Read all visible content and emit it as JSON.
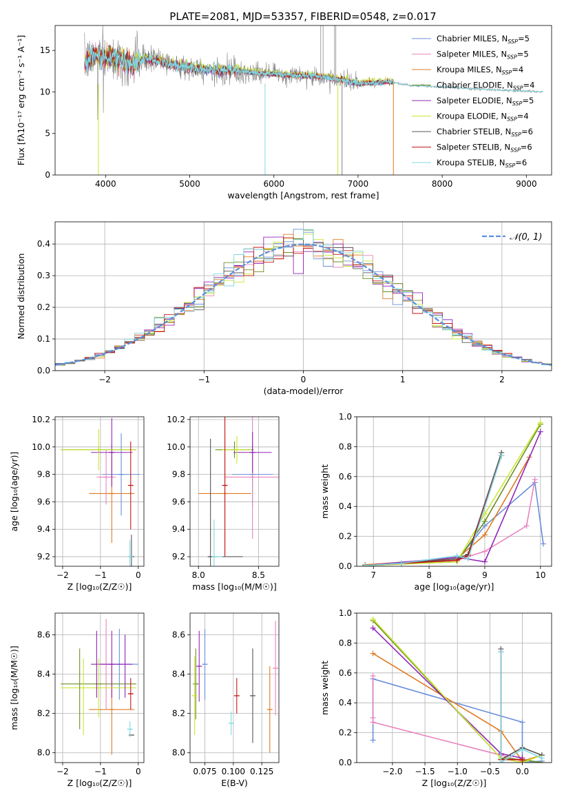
{
  "figure": {
    "title": "PLATE=2081, MJD=53357, FIBERID=0548, z=0.017"
  },
  "colors": {
    "chabrier_miles": "#6a8edb",
    "salpeter_miles": "#e883bd",
    "kroupa_miles": "#e07b1f",
    "chabrier_elodie": "#6b8e23",
    "salpeter_elodie": "#9124b8",
    "kroupa_elodie": "#c8e62e",
    "chabrier_stelib": "#555555",
    "salpeter_stelib": "#c41414",
    "kroupa_stelib": "#7fd8e0",
    "gaussian": "#5b8edb",
    "spectrum_grey": "#808080"
  },
  "chart_data": [
    {
      "id": "spectrum",
      "type": "line",
      "xlabel": "wavelength [Angstrom, rest frame]",
      "ylabel": "Flux [fλ10⁻¹⁷ erg cm⁻² s⁻¹ A⁻¹]",
      "xlim": [
        3400,
        9300
      ],
      "ylim": [
        0,
        18
      ],
      "xticks": [
        4000,
        5000,
        6000,
        7000,
        8000,
        9000
      ],
      "yticks": [
        0,
        5,
        10,
        15
      ],
      "grid": false,
      "legend_position": "top-right",
      "legend": [
        {
          "label": "Chabrier MILES, N",
          "sub": "SSP",
          "tail": "=5",
          "color_key": "chabrier_miles"
        },
        {
          "label": "Salpeter MILES, N",
          "sub": "SSP",
          "tail": "=5",
          "color_key": "salpeter_miles"
        },
        {
          "label": "Kroupa MILES, N",
          "sub": "SSP",
          "tail": "=4",
          "color_key": "kroupa_miles"
        },
        {
          "label": "Chabrier ELODIE, N",
          "sub": "SSP",
          "tail": "=4",
          "color_key": "chabrier_elodie"
        },
        {
          "label": "Salpeter ELODIE, N",
          "sub": "SSP",
          "tail": "=5",
          "color_key": "salpeter_elodie"
        },
        {
          "label": "Kroupa ELODIE, N",
          "sub": "SSP",
          "tail": "=4",
          "color_key": "kroupa_elodie"
        },
        {
          "label": "Chabrier STELIB, N",
          "sub": "SSP",
          "tail": "=6",
          "color_key": "chabrier_stelib"
        },
        {
          "label": "Salpeter STELIB, N",
          "sub": "SSP",
          "tail": "=6",
          "color_key": "salpeter_stelib"
        },
        {
          "label": "Kroupa STELIB, N",
          "sub": "SSP",
          "tail": "=6",
          "color_key": "kroupa_stelib"
        }
      ],
      "continuum_points": [
        [
          3750,
          13.5
        ],
        [
          3900,
          14.5
        ],
        [
          4000,
          14.0
        ],
        [
          4100,
          14.2
        ],
        [
          4300,
          13.3
        ],
        [
          4500,
          14.0
        ],
        [
          4700,
          13.5
        ],
        [
          5000,
          12.9
        ],
        [
          5300,
          12.6
        ],
        [
          5600,
          12.5
        ],
        [
          5900,
          12.2
        ],
        [
          6200,
          12.0
        ],
        [
          6500,
          11.9
        ],
        [
          6800,
          11.5
        ],
        [
          7000,
          11.0
        ],
        [
          7400,
          11.2
        ],
        [
          7600,
          10.8
        ],
        [
          8000,
          10.6
        ],
        [
          8500,
          10.3
        ],
        [
          9000,
          10.1
        ],
        [
          9200,
          10.0
        ]
      ],
      "model_end_wavelength": 7420,
      "data_end_wavelength": 7320,
      "spikes": [
        {
          "x": 3915,
          "color_key": "kroupa_elodie"
        },
        {
          "x": 5895,
          "color_key": "kroupa_stelib"
        },
        {
          "x": 6760,
          "color_key": "kroupa_elodie"
        },
        {
          "x": 6810,
          "color_key": "spectrum_grey"
        },
        {
          "x": 7420,
          "color_key": "kroupa_miles"
        }
      ]
    },
    {
      "id": "residuals",
      "type": "step",
      "xlabel": "(data-model)/error",
      "ylabel": "Normed distribution",
      "xlim": [
        -2.5,
        2.5
      ],
      "ylim": [
        0,
        0.47
      ],
      "xticks": [
        -2,
        -1,
        0,
        1,
        2
      ],
      "yticks": [
        0.0,
        0.1,
        0.2,
        0.3,
        0.4
      ],
      "grid": true,
      "legend_position": "top-right",
      "legend": [
        {
          "label": "𝒩(0, 1)",
          "color_key": "gaussian"
        }
      ],
      "bin_width": 0.1,
      "n_histograms": 9
    },
    {
      "id": "age_vs_Z",
      "type": "errorbar",
      "xlabel": "Z [log₁₀(Z/Z☉)]",
      "ylabel": "age  [log₁₀(age/yr)]",
      "xlim": [
        -2.2,
        0.15
      ],
      "ylim": [
        9.13,
        10.22
      ],
      "xticks": [
        -2,
        -1,
        0
      ],
      "yticks": [
        9.2,
        9.4,
        9.6,
        9.8,
        10.0,
        10.2
      ],
      "grid": true,
      "points": [
        {
          "x": -0.45,
          "xerr": 0.5,
          "y": 9.8,
          "yerr": 0.3,
          "color_key": "chabrier_miles"
        },
        {
          "x": -0.85,
          "xerr": 0.25,
          "y": 9.78,
          "yerr": 0.2,
          "color_key": "salpeter_miles"
        },
        {
          "x": -0.7,
          "xerr": 0.6,
          "y": 9.66,
          "yerr": 0.36,
          "color_key": "kroupa_miles"
        },
        {
          "x": -1.05,
          "xerr": 1.0,
          "y": 9.98,
          "yerr": 0.02,
          "color_key": "chabrier_elodie"
        },
        {
          "x": -0.7,
          "xerr": 0.55,
          "y": 9.96,
          "yerr": 0.25,
          "color_key": "salpeter_elodie"
        },
        {
          "x": -1.05,
          "xerr": 1.0,
          "y": 9.98,
          "yerr": 0.15,
          "color_key": "kroupa_elodie"
        },
        {
          "x": -0.18,
          "xerr": 0.05,
          "y": 9.2,
          "yerr": 0.16,
          "color_key": "chabrier_stelib"
        },
        {
          "x": -0.2,
          "xerr": 0.05,
          "y": 9.72,
          "yerr": 0.32,
          "color_key": "salpeter_stelib"
        },
        {
          "x": -0.22,
          "xerr": 0.04,
          "y": 9.2,
          "yerr": 0.12,
          "color_key": "kroupa_stelib"
        }
      ]
    },
    {
      "id": "age_vs_mass",
      "type": "errorbar",
      "xlabel": "mass [log₁₀(M/M☉)]",
      "ylabel": "",
      "xlim": [
        7.93,
        8.67
      ],
      "ylim": [
        9.13,
        10.22
      ],
      "xticks": [
        8.0,
        8.5
      ],
      "yticks": [
        9.2,
        9.4,
        9.6,
        9.8,
        10.0,
        10.2
      ],
      "grid": true,
      "points": [
        {
          "x": 8.45,
          "xerr": 0.17,
          "y": 9.8,
          "yerr": 0.23,
          "color_key": "chabrier_miles"
        },
        {
          "x": 8.45,
          "xerr": 0.23,
          "y": 9.78,
          "yerr": 0.45,
          "color_key": "salpeter_miles"
        },
        {
          "x": 8.22,
          "xerr": 0.22,
          "y": 9.66,
          "yerr": 0.44,
          "color_key": "kroupa_miles"
        },
        {
          "x": 8.3,
          "xerr": 0.16,
          "y": 9.98,
          "yerr": 0.06,
          "color_key": "chabrier_elodie"
        },
        {
          "x": 8.45,
          "xerr": 0.16,
          "y": 9.96,
          "yerr": 0.15,
          "color_key": "salpeter_elodie"
        },
        {
          "x": 8.32,
          "xerr": 0.12,
          "y": 9.98,
          "yerr": 0.1,
          "color_key": "kroupa_elodie"
        },
        {
          "x": 8.1,
          "xerr": 0.01,
          "y": 9.2,
          "yerr": 0.86,
          "color_key": "chabrier_stelib"
        },
        {
          "x": 8.22,
          "xerr": 0.02,
          "y": 9.72,
          "yerr": 0.52,
          "color_key": "salpeter_stelib"
        },
        {
          "x": 8.13,
          "xerr": 0.01,
          "y": 9.2,
          "yerr": 0.27,
          "color_key": "kroupa_stelib"
        }
      ],
      "hlines": [
        {
          "x1": 8.08,
          "x2": 8.37,
          "y": 9.2,
          "color_key": "chabrier_stelib"
        },
        {
          "x1": 8.11,
          "x2": 8.2,
          "y": 9.2,
          "color_key": "kroupa_stelib"
        }
      ]
    },
    {
      "id": "mass_weight_vs_age",
      "type": "line",
      "xlabel": "age  [log₁₀(age/yr)]",
      "ylabel": "mass weight",
      "xlim": [
        6.7,
        10.2
      ],
      "ylim": [
        0,
        1.0
      ],
      "xticks": [
        7,
        8,
        9,
        10
      ],
      "yticks": [
        0.0,
        0.2,
        0.4,
        0.6,
        0.8,
        1.0
      ],
      "grid": true,
      "series": [
        {
          "color_key": "chabrier_miles",
          "x": [
            6.85,
            8.5,
            9.0,
            9.9,
            10.05
          ],
          "y": [
            0.005,
            0.04,
            0.27,
            0.56,
            0.15
          ]
        },
        {
          "color_key": "salpeter_miles",
          "x": [
            6.85,
            8.5,
            9.0,
            9.75,
            9.9
          ],
          "y": [
            0.005,
            0.04,
            0.1,
            0.27,
            0.58
          ]
        },
        {
          "color_key": "kroupa_miles",
          "x": [
            6.85,
            8.5,
            9.0,
            9.8
          ],
          "y": [
            0.01,
            0.05,
            0.21,
            0.73
          ]
        },
        {
          "color_key": "chabrier_elodie",
          "x": [
            6.85,
            8.5,
            9.0,
            10.0
          ],
          "y": [
            0.005,
            0.03,
            0.3,
            0.95
          ]
        },
        {
          "color_key": "salpeter_elodie",
          "x": [
            6.85,
            8.5,
            9.0,
            10.0
          ],
          "y": [
            0.005,
            0.06,
            0.03,
            0.9
          ]
        },
        {
          "color_key": "kroupa_elodie",
          "x": [
            6.85,
            8.5,
            9.0,
            10.0
          ],
          "y": [
            0.005,
            0.03,
            0.35,
            0.96
          ]
        },
        {
          "color_key": "chabrier_stelib",
          "x": [
            6.85,
            7.5,
            8.5,
            8.7,
            9.3
          ],
          "y": [
            0.005,
            0.02,
            0.05,
            0.08,
            0.76
          ]
        },
        {
          "color_key": "salpeter_stelib",
          "x": [
            6.85,
            8.5,
            8.7,
            9.3
          ],
          "y": [
            0.005,
            0.04,
            0.07,
            0.74
          ]
        },
        {
          "color_key": "kroupa_stelib",
          "x": [
            6.85,
            7.5,
            8.5,
            8.7,
            9.3
          ],
          "y": [
            0.005,
            0.02,
            0.07,
            0.05,
            0.74
          ]
        }
      ]
    },
    {
      "id": "mass_vs_Z",
      "type": "errorbar",
      "xlabel": "Z [log₁₀(Z/Z☉)]",
      "ylabel": "mass [log₁₀(M/M☉)]",
      "xlim": [
        -2.2,
        0.15
      ],
      "ylim": [
        7.95,
        8.71
      ],
      "xticks": [
        -2,
        -1,
        0
      ],
      "yticks": [
        8.0,
        8.2,
        8.4,
        8.6
      ],
      "grid": true,
      "points": [
        {
          "x": -0.5,
          "xerr": 0.5,
          "y": 8.45,
          "yerr": 0.18,
          "color_key": "chabrier_miles"
        },
        {
          "x": -0.85,
          "xerr": 0.2,
          "y": 8.45,
          "yerr": 0.23,
          "color_key": "salpeter_miles"
        },
        {
          "x": -0.7,
          "xerr": 0.6,
          "y": 8.22,
          "yerr": 0.23,
          "color_key": "kroupa_miles"
        },
        {
          "x": -1.05,
          "xerr": 1.0,
          "y": 8.35,
          "yerr": 0.0,
          "color_key": "chabrier_elodie"
        },
        {
          "x": -0.7,
          "xerr": 0.55,
          "y": 8.45,
          "yerr": 0.17,
          "color_key": "salpeter_elodie"
        },
        {
          "x": -1.05,
          "xerr": 1.0,
          "y": 8.33,
          "yerr": 0.15,
          "color_key": "kroupa_elodie"
        },
        {
          "x": -0.18,
          "xerr": 0.05,
          "y": 8.09,
          "yerr": 0.0,
          "color_key": "chabrier_stelib"
        },
        {
          "x": -0.2,
          "xerr": 0.05,
          "y": 8.3,
          "yerr": 0.08,
          "color_key": "salpeter_stelib"
        },
        {
          "x": -0.22,
          "xerr": 0.04,
          "y": 8.12,
          "yerr": 0.04,
          "color_key": "kroupa_stelib"
        }
      ],
      "vlines": [
        {
          "x": -1.55,
          "y1": 8.12,
          "y2": 8.53,
          "color_key": "chabrier_elodie"
        },
        {
          "x": -1.45,
          "y1": 8.09,
          "y2": 8.48,
          "color_key": "kroupa_elodie"
        },
        {
          "x": -1.1,
          "y1": 8.28,
          "y2": 8.62,
          "color_key": "salpeter_elodie"
        },
        {
          "x": -0.35,
          "y1": 8.28,
          "y2": 8.6,
          "color_key": "salpeter_elodie"
        }
      ]
    },
    {
      "id": "mass_vs_ebv",
      "type": "errorbar",
      "xlabel": "E(B-V)",
      "ylabel": "",
      "xlim": [
        0.062,
        0.14
      ],
      "ylim": [
        7.95,
        8.71
      ],
      "xticks": [
        0.075,
        0.1,
        0.125
      ],
      "yticks": [
        8.0,
        8.2,
        8.4,
        8.6
      ],
      "grid": true,
      "points": [
        {
          "x": 0.075,
          "xerr": 0,
          "y": 8.45,
          "yerr": 0.18,
          "color_key": "chabrier_miles"
        },
        {
          "x": 0.137,
          "xerr": 0,
          "y": 8.43,
          "yerr": 0.24,
          "color_key": "salpeter_miles"
        },
        {
          "x": 0.132,
          "xerr": 0,
          "y": 8.22,
          "yerr": 0.22,
          "color_key": "kroupa_miles"
        },
        {
          "x": 0.067,
          "xerr": 0,
          "y": 8.35,
          "yerr": 0.18,
          "color_key": "chabrier_elodie"
        },
        {
          "x": 0.07,
          "xerr": 0,
          "y": 8.44,
          "yerr": 0.18,
          "color_key": "salpeter_elodie"
        },
        {
          "x": 0.066,
          "xerr": 0,
          "y": 8.29,
          "yerr": 0.2,
          "color_key": "kroupa_elodie"
        },
        {
          "x": 0.117,
          "xerr": 0,
          "y": 8.29,
          "yerr": 0.24,
          "color_key": "chabrier_stelib"
        },
        {
          "x": 0.103,
          "xerr": 0,
          "y": 8.29,
          "yerr": 0.09,
          "color_key": "salpeter_stelib"
        },
        {
          "x": 0.098,
          "xerr": 0,
          "y": 8.15,
          "yerr": 0.06,
          "color_key": "kroupa_stelib"
        }
      ]
    },
    {
      "id": "mass_weight_vs_Z",
      "type": "line",
      "xlabel": "Z [log₁₀(Z/Z☉)]",
      "ylabel": "mass weight",
      "xlim": [
        -2.55,
        0.45
      ],
      "ylim": [
        0,
        1.0
      ],
      "xticks": [
        -2.0,
        -1.5,
        -1.0,
        -0.5,
        0.0
      ],
      "yticks": [
        0.0,
        0.2,
        0.4,
        0.6,
        0.8,
        1.0
      ],
      "grid": true,
      "series": [
        {
          "color_key": "chabrier_miles",
          "x": [
            -2.3,
            -2.3,
            0.0,
            0.0,
            0.3
          ],
          "y": [
            0.15,
            0.56,
            0.27,
            0.0,
            0.01
          ]
        },
        {
          "color_key": "salpeter_miles",
          "x": [
            -2.3,
            -2.3,
            -2.3,
            -0.33,
            0.0
          ],
          "y": [
            0.58,
            0.3,
            0.27,
            0.05,
            0.01
          ]
        },
        {
          "color_key": "kroupa_miles",
          "x": [
            -2.3,
            -0.33,
            0.0,
            0.3
          ],
          "y": [
            0.73,
            0.21,
            0.01,
            0.05
          ]
        },
        {
          "color_key": "chabrier_elodie",
          "x": [
            -2.3,
            -0.33,
            0.0,
            0.3
          ],
          "y": [
            0.95,
            0.03,
            0.02,
            0.0
          ]
        },
        {
          "color_key": "salpeter_elodie",
          "x": [
            -2.3,
            -0.33,
            0.0
          ],
          "y": [
            0.9,
            0.06,
            0.03
          ]
        },
        {
          "color_key": "kroupa_elodie",
          "x": [
            -2.3,
            -0.33,
            0.0,
            0.3
          ],
          "y": [
            0.96,
            0.03,
            0.0,
            0.05
          ]
        },
        {
          "color_key": "chabrier_stelib",
          "x": [
            -0.33,
            -0.33,
            0.0,
            0.3
          ],
          "y": [
            0.76,
            0.02,
            0.1,
            0.05
          ]
        },
        {
          "color_key": "salpeter_stelib",
          "x": [
            -0.33,
            -0.33,
            0.0
          ],
          "y": [
            0.74,
            0.02,
            0.02
          ]
        },
        {
          "color_key": "kroupa_stelib",
          "x": [
            -0.33,
            -0.33,
            0.0,
            0.3
          ],
          "y": [
            0.74,
            0.0,
            0.09,
            0.03
          ]
        }
      ]
    }
  ]
}
